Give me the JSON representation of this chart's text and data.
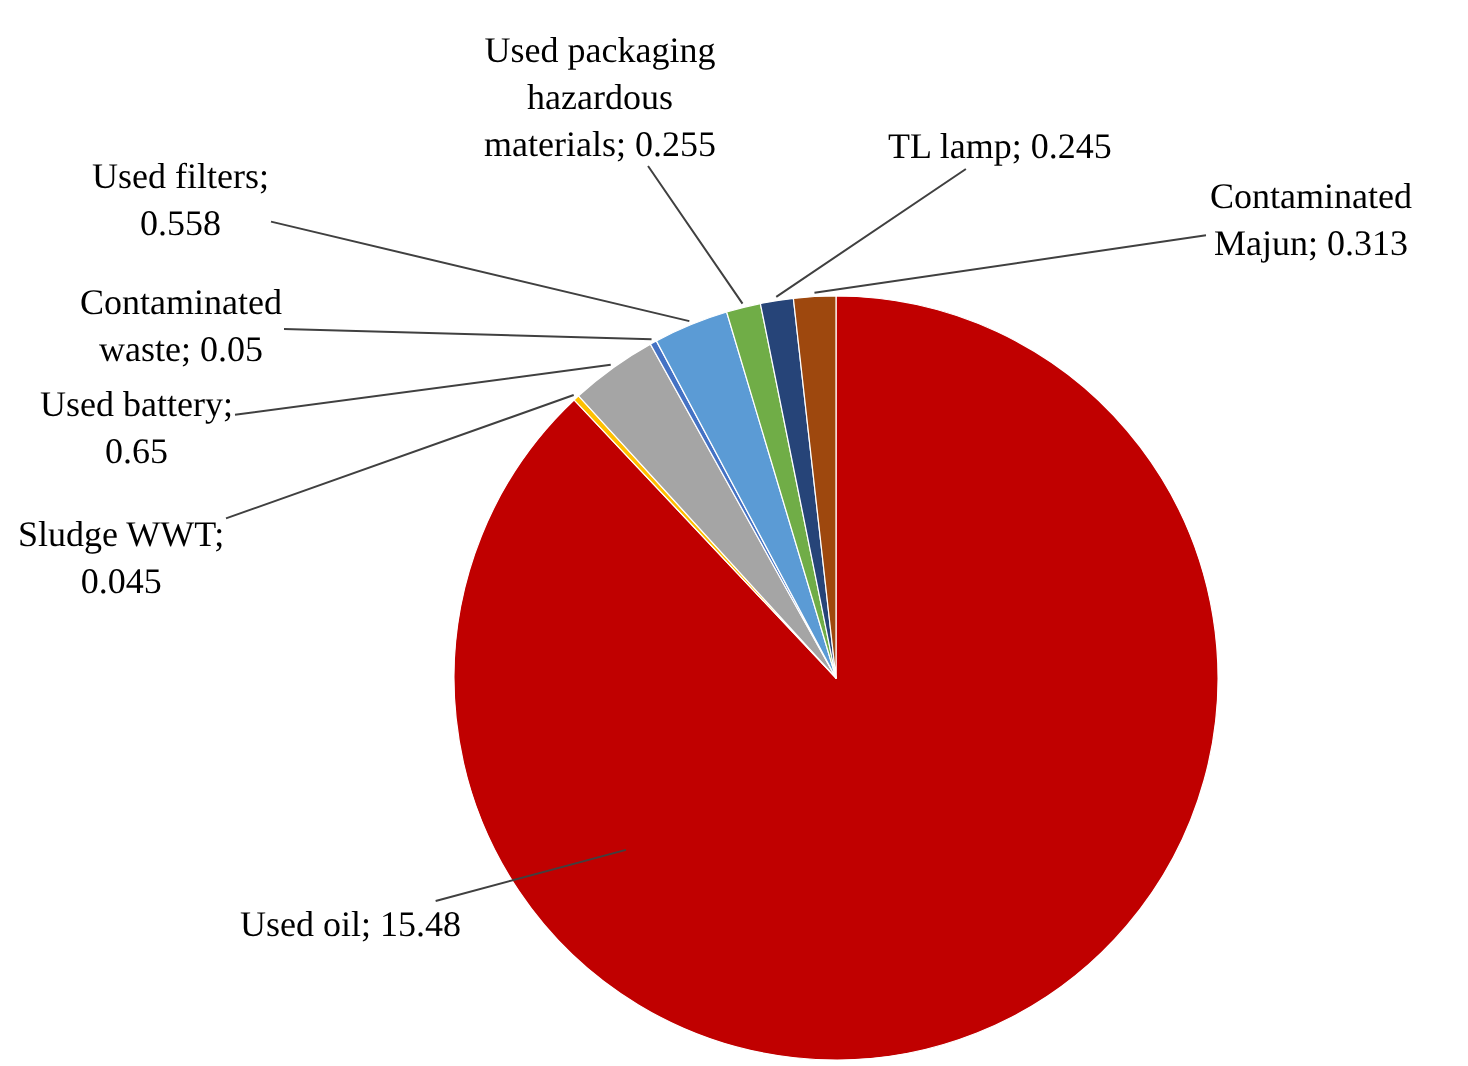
{
  "chart_data": {
    "type": "pie",
    "categories": [
      "Used oil; 15.48",
      "Sludge WWT; 0.045",
      "Used battery; 0.65",
      "Contaminated waste; 0.05",
      "Used filters; 0.558",
      "Used packaging hazardous materials; 0.255",
      "TL lamp; 0.245",
      "Contaminated Majun; 0.313"
    ],
    "values": [
      15.48,
      0.045,
      0.65,
      0.05,
      0.558,
      0.255,
      0.245,
      0.313
    ],
    "colors": [
      "#c00000",
      "#ffc000",
      "#a5a5a5",
      "#4472c4",
      "#5b9bd5",
      "#70ad47",
      "#264478",
      "#9e480e"
    ],
    "legend": false
  }
}
